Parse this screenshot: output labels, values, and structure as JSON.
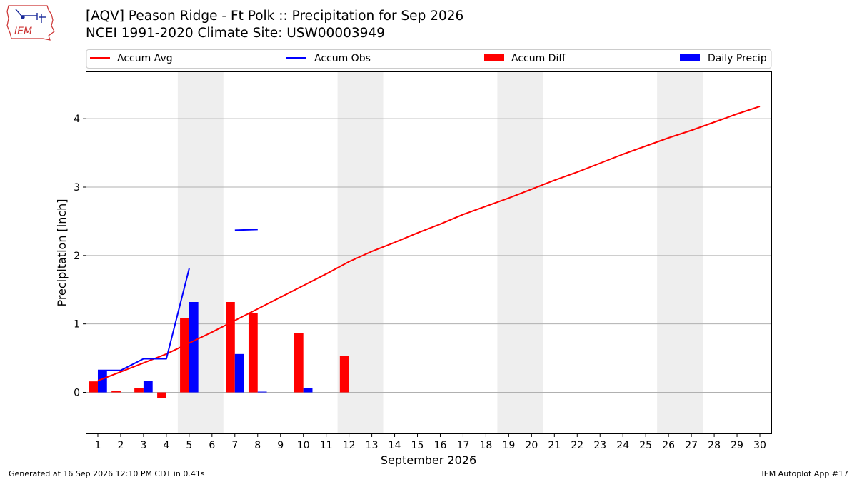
{
  "header": {
    "title_line1": "[AQV] Peason Ridge - Ft Polk :: Precipitation for Sep 2026",
    "title_line2": "NCEI 1991-2020 Climate Site: USW00003949",
    "logo_text": "IEM"
  },
  "footer": {
    "left": "Generated at 16 Sep 2026 12:10 PM CDT in 0.41s",
    "right": "IEM Autoplot App #17"
  },
  "colors": {
    "avg": "#ff0000",
    "obs": "#0000ff",
    "diff": "#ff0000",
    "daily": "#0000ff",
    "weekend": "#eeeeee",
    "grid": "#b0b0b0"
  },
  "chart_data": {
    "type": "bar",
    "xlabel": "September 2026",
    "ylabel": "Precipitation [inch]",
    "xlim": [
      0.5,
      30.5
    ],
    "ylim": [
      -0.6,
      4.68
    ],
    "x_ticks": [
      1,
      2,
      3,
      4,
      5,
      6,
      7,
      8,
      9,
      10,
      11,
      12,
      13,
      14,
      15,
      16,
      17,
      18,
      19,
      20,
      21,
      22,
      23,
      24,
      25,
      26,
      27,
      28,
      29,
      30
    ],
    "y_ticks": [
      0,
      1,
      2,
      3,
      4
    ],
    "grid": "horizontal",
    "legend_position": "top",
    "shaded_weekends": [
      [
        5,
        6
      ],
      [
        12,
        13
      ],
      [
        19,
        20
      ],
      [
        26,
        27
      ]
    ],
    "legend": [
      "Accum Avg",
      "Accum Obs",
      "Accum Diff",
      "Daily Precip"
    ],
    "series": [
      {
        "name": "Accum Avg",
        "type": "line",
        "x": [
          1,
          2,
          3,
          4,
          5,
          6,
          7,
          8,
          9,
          10,
          11,
          12,
          13,
          14,
          15,
          16,
          17,
          18,
          19,
          20,
          21,
          22,
          23,
          24,
          25,
          26,
          27,
          28,
          29,
          30
        ],
        "values": [
          0.17,
          0.3,
          0.43,
          0.56,
          0.72,
          0.88,
          1.05,
          1.22,
          1.39,
          1.56,
          1.73,
          1.91,
          2.06,
          2.19,
          2.33,
          2.46,
          2.6,
          2.72,
          2.84,
          2.97,
          3.1,
          3.22,
          3.35,
          3.48,
          3.6,
          3.72,
          3.83,
          3.95,
          4.07,
          4.18
        ]
      },
      {
        "name": "Accum Obs",
        "type": "line",
        "x": [
          1,
          2,
          3,
          4,
          5,
          6,
          7,
          8
        ],
        "values": [
          0.32,
          0.32,
          0.49,
          0.49,
          1.81,
          null,
          2.37,
          2.38
        ]
      },
      {
        "name": "Accum Diff",
        "type": "bar",
        "x": [
          1,
          2,
          3,
          4,
          5,
          7,
          8,
          10,
          12
        ],
        "values": [
          0.16,
          0.02,
          0.06,
          -0.08,
          1.09,
          1.32,
          1.16,
          0.87,
          0.53
        ]
      },
      {
        "name": "Daily Precip",
        "type": "bar",
        "x": [
          1,
          3,
          5,
          7,
          8,
          10
        ],
        "values": [
          0.32,
          0.17,
          1.32,
          0.56,
          0.01,
          0.06
        ]
      }
    ]
  }
}
